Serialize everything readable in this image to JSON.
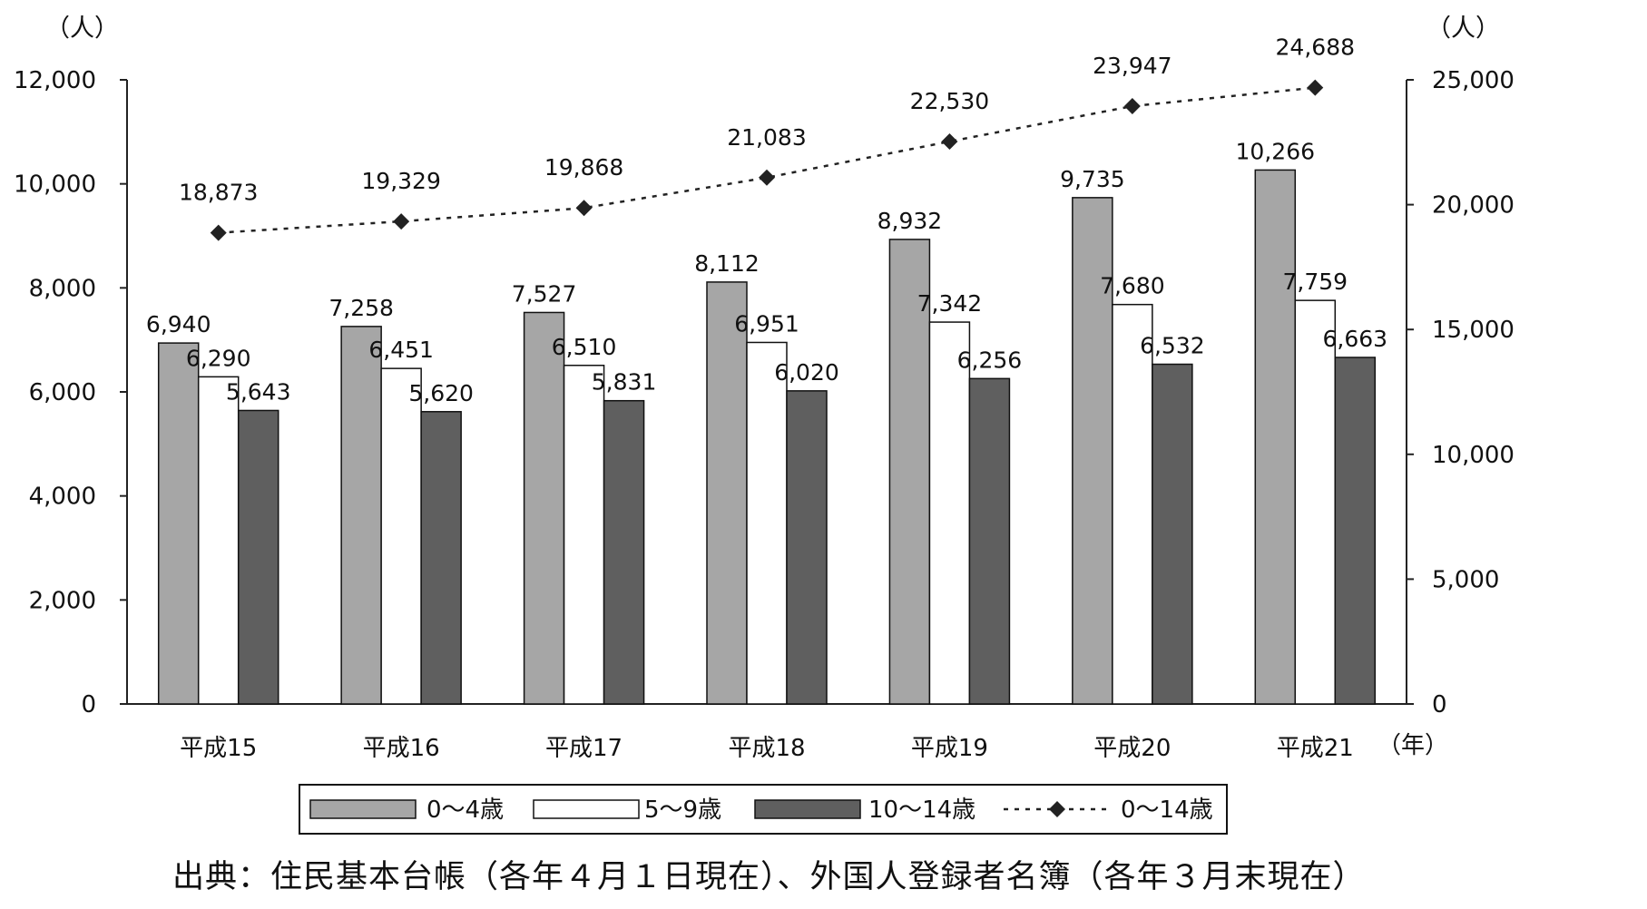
{
  "chart_data": {
    "type": "bar",
    "categories": [
      "平成15",
      "平成16",
      "平成17",
      "平成18",
      "平成19",
      "平成20",
      "平成21"
    ],
    "x_unit": "（年）",
    "left_axis": {
      "unit": "（人）",
      "ylim": [
        0,
        12000
      ],
      "ticks": [
        "0",
        "2,000",
        "4,000",
        "6,000",
        "8,000",
        "10,000",
        "12,000"
      ]
    },
    "right_axis": {
      "unit": "（人）",
      "ylim": [
        0,
        25000
      ],
      "ticks": [
        "0",
        "5,000",
        "10,000",
        "15,000",
        "20,000",
        "25,000"
      ]
    },
    "series": [
      {
        "name": "0～4歳",
        "kind": "bar",
        "axis": "left",
        "color": "#a6a6a6",
        "values": [
          6940,
          7258,
          7527,
          8112,
          8932,
          9735,
          10266
        ],
        "labels": [
          "6,940",
          "7,258",
          "7,527",
          "8,112",
          "8,932",
          "9,735",
          "10,266"
        ]
      },
      {
        "name": "5～9歳",
        "kind": "bar",
        "axis": "left",
        "color": "#ffffff",
        "values": [
          6290,
          6451,
          6510,
          6951,
          7342,
          7680,
          7759
        ],
        "labels": [
          "6,290",
          "6,451",
          "6,510",
          "6,951",
          "7,342",
          "7,680",
          "7,759"
        ]
      },
      {
        "name": "10～14歳",
        "kind": "bar",
        "axis": "left",
        "color": "#5f5f5f",
        "values": [
          5643,
          5620,
          5831,
          6020,
          6256,
          6532,
          6663
        ],
        "labels": [
          "5,643",
          "5,620",
          "5,831",
          "6,020",
          "6,256",
          "6,532",
          "6,663"
        ]
      },
      {
        "name": "0～14歳",
        "kind": "line",
        "axis": "right",
        "color": "#222222",
        "line_style": "dotted",
        "marker": "diamond",
        "values": [
          18873,
          19329,
          19868,
          21083,
          22530,
          23947,
          24688
        ],
        "labels": [
          "18,873",
          "19,329",
          "19,868",
          "21,083",
          "22,530",
          "23,947",
          "24,688"
        ]
      }
    ],
    "grid": false,
    "legend_position": "bottom"
  },
  "source_text": "出典：住民基本台帳（各年４月１日現在）、外国人登録者名簿（各年３月末現在）"
}
